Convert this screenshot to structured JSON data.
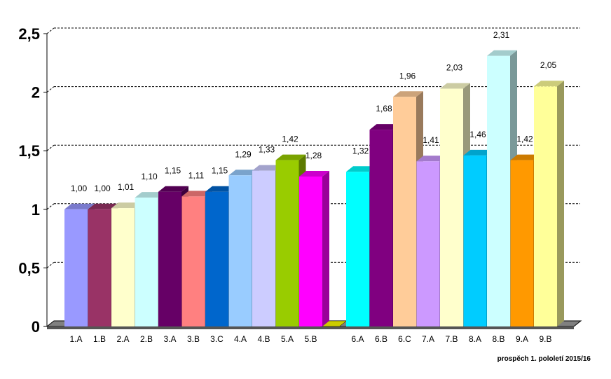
{
  "chart_data": {
    "type": "bar",
    "categories": [
      "1.A",
      "1.B",
      "2.A",
      "2.B",
      "3.A",
      "3.B",
      "3.C",
      "4.A",
      "4.B",
      "5.A",
      "5.B",
      "",
      "6.A",
      "6.B",
      "6.C",
      "7.A",
      "7.B",
      "8.A",
      "8.B",
      "9.A",
      "9.B"
    ],
    "values": [
      1.0,
      1.0,
      1.01,
      1.1,
      1.15,
      1.11,
      1.15,
      1.29,
      1.33,
      1.42,
      1.28,
      null,
      1.32,
      1.68,
      1.96,
      1.41,
      2.03,
      1.46,
      2.31,
      1.42,
      2.05
    ],
    "data_labels": [
      "1,00",
      "1,00",
      "1,01",
      "1,10",
      "1,15",
      "1,11",
      "1,15",
      "1,29",
      "1,33",
      "1,42",
      "1,28",
      "",
      "1,32",
      "1,68",
      "1,96",
      "1,41",
      "2,03",
      "1,46",
      "2,31",
      "1,42",
      "2,05"
    ],
    "colors": [
      "#9999ff",
      "#993366",
      "#ffffcc",
      "#ccffff",
      "#660066",
      "#ff8080",
      "#0066cc",
      "#99ccff",
      "#ccccff",
      "#99cc00",
      "#ff00ff",
      "",
      "#00ffff",
      "#800080",
      "#ffcc99",
      "#cc99ff",
      "#ffffcc",
      "#00ccff",
      "#ccffff",
      "#ff9900",
      "#ffff99"
    ],
    "ylim": [
      0,
      2.5
    ],
    "yticks": [
      "0",
      "0,5",
      "1",
      "1,5",
      "2",
      "2,5"
    ],
    "grid": true,
    "footer": "prospěch 1. pololetí 2015/16"
  }
}
